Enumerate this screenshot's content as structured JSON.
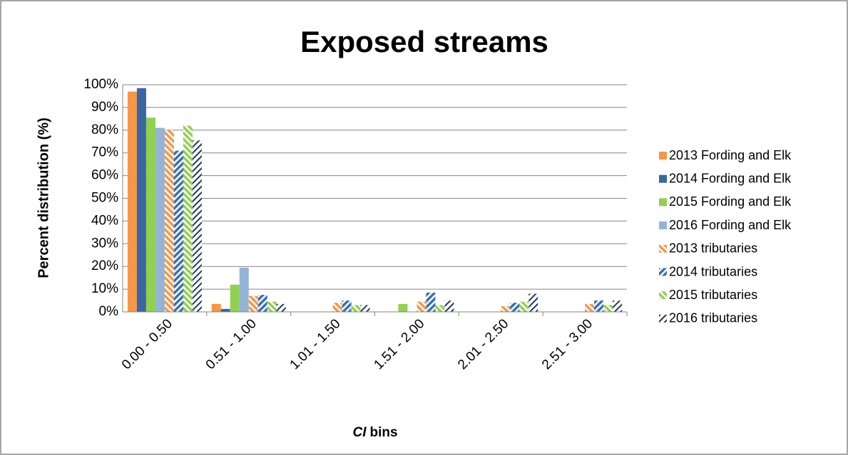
{
  "chart_data": {
    "type": "bar",
    "title": "Exposed streams",
    "y_label": "Percent distribution (%)",
    "x_label": [
      "CI",
      "bins"
    ],
    "categories": [
      "0.00 - 0.50",
      "0.51 - 1.00",
      "1.01 - 1.50",
      "1.51 - 2.00",
      "2.01 - 2.50",
      "2.51 - 3.00"
    ],
    "ylim": [
      0,
      100
    ],
    "yticks": [
      {
        "value": 0,
        "label": "0%"
      },
      {
        "value": 10,
        "label": "10%"
      },
      {
        "value": 20,
        "label": "20%"
      },
      {
        "value": 30,
        "label": "30%"
      },
      {
        "value": 40,
        "label": "40%"
      },
      {
        "value": 50,
        "label": "50%"
      },
      {
        "value": 60,
        "label": "60%"
      },
      {
        "value": 70,
        "label": "70%"
      },
      {
        "value": 80,
        "label": "80%"
      },
      {
        "value": 90,
        "label": "90%"
      },
      {
        "value": 100,
        "label": "100%"
      }
    ],
    "grid": true,
    "legend": "right",
    "series": [
      {
        "name": "2013 Fording and Elk",
        "color": "#f79646",
        "fill_style": "solid",
        "values": [
          97,
          3.5,
          0,
          0,
          0,
          0
        ]
      },
      {
        "name": "2014 Fording and Elk",
        "color": "#3a66a3",
        "fill_style": "solid",
        "values": [
          98.5,
          1.3,
          0,
          0,
          0,
          0
        ]
      },
      {
        "name": "2015 Fording and Elk",
        "color": "#92d050",
        "fill_style": "solid",
        "values": [
          85.5,
          12,
          0,
          3.5,
          0,
          0
        ]
      },
      {
        "name": "2016 Fording and Elk",
        "color": "#95b3d7",
        "fill_style": "solid",
        "values": [
          81,
          19.5,
          0,
          0,
          0,
          0
        ]
      },
      {
        "name": "2013 tributaries",
        "color": "#f79646",
        "fill_style": "hatched",
        "values": [
          80,
          7,
          4,
          4.5,
          2.5,
          3.5
        ]
      },
      {
        "name": "2014 tributaries",
        "color": "#3a6fb5",
        "fill_style": "hatched",
        "values": [
          71,
          7.5,
          5,
          8.5,
          4,
          5
        ]
      },
      {
        "name": "2015 tributaries",
        "color": "#92d050",
        "fill_style": "hatched",
        "values": [
          82,
          4.5,
          3,
          3,
          4.5,
          3
        ]
      },
      {
        "name": "2016 tributaries",
        "color": "#1f3864",
        "fill_style": "hatched",
        "values": [
          75.5,
          3.5,
          3,
          5,
          8,
          5
        ]
      }
    ]
  }
}
